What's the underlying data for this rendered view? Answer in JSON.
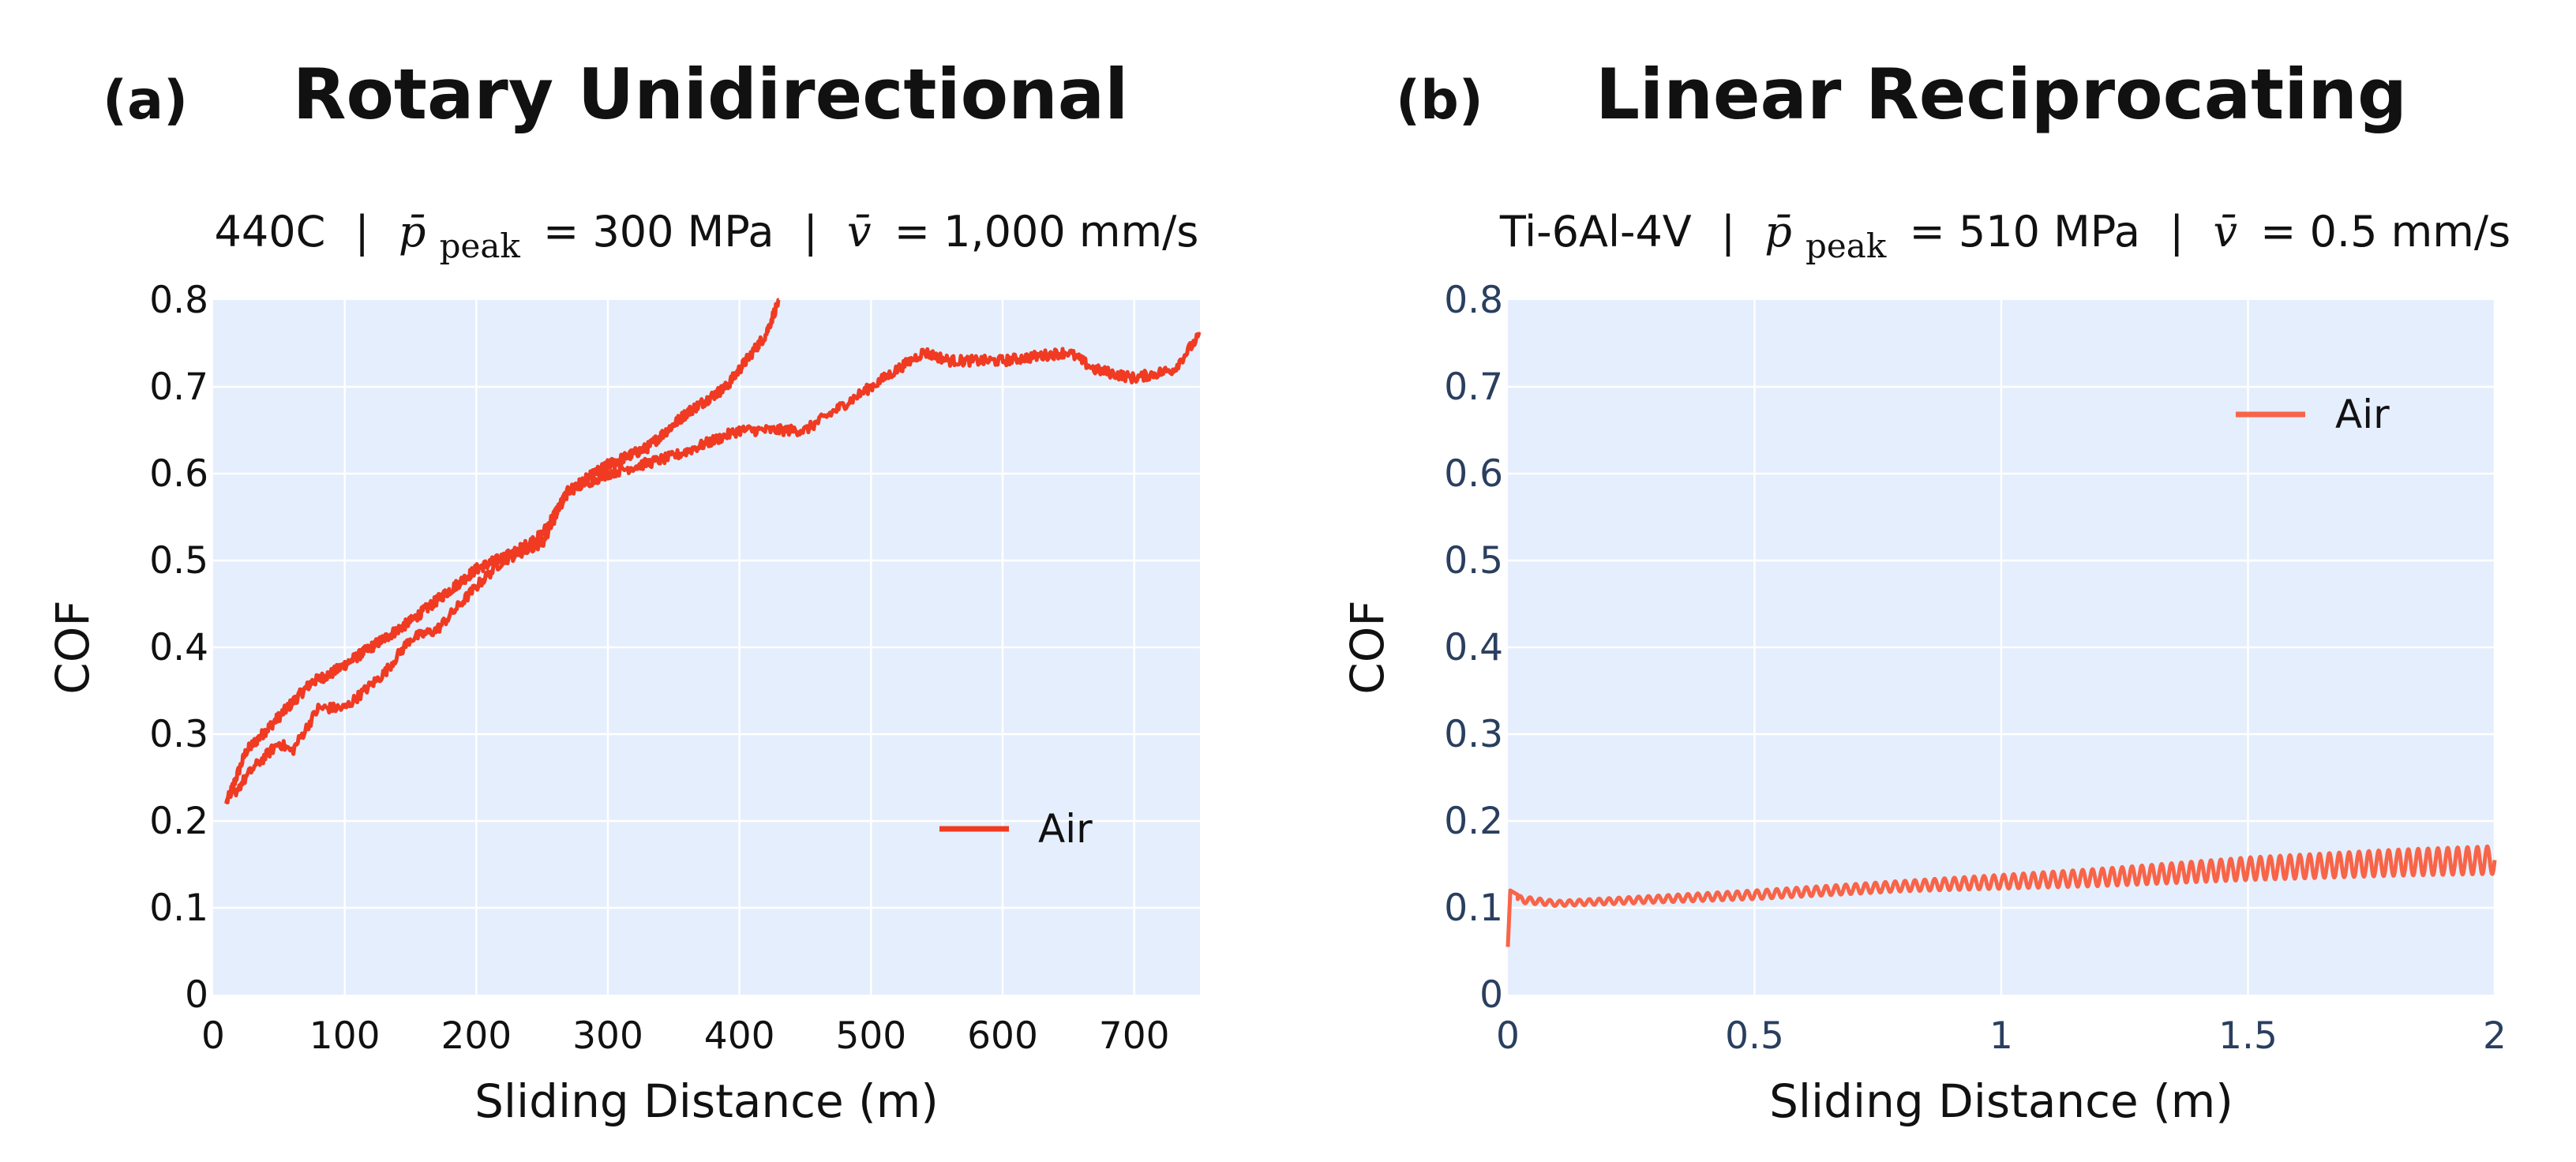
{
  "chart_data": [
    {
      "type": "line",
      "panel": "(a)",
      "title": "Rotary Unidirectional",
      "subtitle": {
        "material": "440C",
        "p_symbol": "p̄",
        "p_sub": "peak",
        "p_value": "= 300 MPa",
        "v_symbol": "v̄",
        "v_value": "= 1,000 mm/s",
        "sep": "|"
      },
      "xlabel": "Sliding Distance (m)",
      "ylabel": "COF",
      "xlim": [
        0,
        750
      ],
      "ylim": [
        0,
        0.8
      ],
      "xticks": [
        0,
        100,
        200,
        300,
        400,
        500,
        600,
        700
      ],
      "xtick_labels": [
        "0",
        "100",
        "200",
        "300",
        "400",
        "500",
        "600",
        "700"
      ],
      "yticks": [
        0,
        0.1,
        0.2,
        0.3,
        0.4,
        0.5,
        0.6,
        0.7,
        0.8
      ],
      "ytick_labels": [
        "0",
        "0.1",
        "0.2",
        "0.3",
        "0.4",
        "0.5",
        "0.6",
        "0.7",
        "0.8"
      ],
      "grid": true,
      "legend_position": "bottom-right",
      "color": "#f03a22",
      "series": [
        {
          "name": "Air",
          "x": [
            10,
            25,
            50,
            75,
            90,
            120,
            150,
            175,
            200,
            230,
            250,
            270,
            300,
            330,
            360,
            390,
            420,
            430
          ],
          "y": [
            0.22,
            0.28,
            0.32,
            0.36,
            0.37,
            0.4,
            0.43,
            0.46,
            0.49,
            0.51,
            0.53,
            0.58,
            0.61,
            0.63,
            0.67,
            0.7,
            0.76,
            0.8
          ]
        },
        {
          "name": "Air",
          "x": [
            10,
            30,
            50,
            60,
            80,
            100,
            130,
            150,
            170,
            200,
            220,
            250,
            270,
            300,
            350,
            400,
            450,
            500,
            540,
            560,
            600,
            650,
            670,
            700,
            730,
            750
          ],
          "y": [
            0.22,
            0.26,
            0.29,
            0.28,
            0.33,
            0.33,
            0.37,
            0.41,
            0.42,
            0.47,
            0.5,
            0.52,
            0.58,
            0.6,
            0.62,
            0.65,
            0.65,
            0.7,
            0.74,
            0.73,
            0.73,
            0.74,
            0.72,
            0.71,
            0.72,
            0.76
          ]
        }
      ],
      "legend": [
        "Air"
      ]
    },
    {
      "type": "line",
      "panel": "(b)",
      "title": "Linear Reciprocating",
      "subtitle": {
        "material": "Ti-6Al-4V",
        "p_symbol": "p̄",
        "p_sub": "peak",
        "p_value": "= 510 MPa",
        "v_symbol": "v̄",
        "v_value": "= 0.5 mm/s",
        "sep": "|"
      },
      "xlabel": "Sliding Distance (m)",
      "ylabel": "COF",
      "xlim": [
        0,
        2
      ],
      "ylim": [
        0,
        0.8
      ],
      "xticks": [
        0,
        0.5,
        1,
        1.5,
        2
      ],
      "xtick_labels": [
        "0",
        "0.5",
        "1",
        "1.5",
        "2"
      ],
      "yticks": [
        0,
        0.1,
        0.2,
        0.3,
        0.4,
        0.5,
        0.6,
        0.7,
        0.8
      ],
      "ytick_labels": [
        "0",
        "0.1",
        "0.2",
        "0.3",
        "0.4",
        "0.5",
        "0.6",
        "0.7",
        "0.8"
      ],
      "grid": true,
      "legend_position": "top-right",
      "color": "#f86448",
      "series": [
        {
          "name": "Air",
          "start": {
            "x": [
              0,
              0.005,
              0.02
            ],
            "y": [
              0.055,
              0.12,
              0.115
            ]
          },
          "x": [
            0.02,
            0.1,
            0.3,
            0.5,
            0.8,
            1.0,
            1.2,
            1.5,
            1.8,
            2.0
          ],
          "y_mean": [
            0.11,
            0.105,
            0.11,
            0.115,
            0.125,
            0.13,
            0.135,
            0.145,
            0.152,
            0.155
          ],
          "oscillation_amplitude": [
            0.004,
            0.003,
            0.004,
            0.005,
            0.006,
            0.008,
            0.01,
            0.013,
            0.015,
            0.016
          ],
          "oscillation_period": 0.02
        }
      ],
      "legend": [
        "Air"
      ]
    }
  ]
}
